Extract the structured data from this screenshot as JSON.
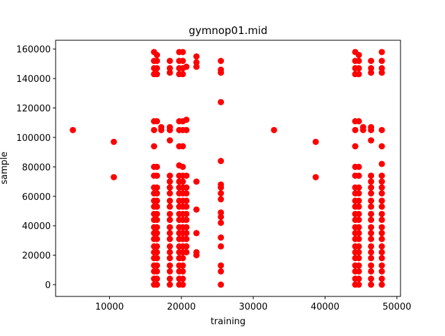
{
  "chart_data": {
    "type": "scatter",
    "title": "gymnop01.mid",
    "xlabel": "training",
    "ylabel": "sample",
    "xlim": [
      2500,
      50500
    ],
    "ylim": [
      -8000,
      166000
    ],
    "xticks": [
      10000,
      20000,
      30000,
      40000,
      50000
    ],
    "yticks": [
      0,
      20000,
      40000,
      60000,
      80000,
      100000,
      120000,
      140000,
      160000
    ],
    "grid": false,
    "legend": "none",
    "marker_color": "#ff0000",
    "series": [
      {
        "columns": [
          {
            "x": 4900,
            "y": [
              105000
            ]
          },
          {
            "x": 10600,
            "y": [
              73000,
              97000
            ]
          },
          {
            "x": 16200,
            "y": [
              0,
              4000,
              9000,
              13000,
              18000,
              22000,
              26000,
              31000,
              35000,
              39000,
              44000,
              48000,
              53000,
              57000,
              62000,
              66000,
              74000,
              80000,
              94000,
              105000,
              111000,
              143000,
              147000,
              152000,
              158000
            ]
          },
          {
            "x": 16600,
            "y": [
              0,
              4000,
              9000,
              13000,
              18000,
              22000,
              26000,
              31000,
              35000,
              39000,
              44000,
              48000,
              53000,
              57000,
              62000,
              66000,
              74000,
              80000,
              111000,
              143000,
              147000,
              152000,
              156000
            ]
          },
          {
            "x": 17200,
            "y": [
              105000,
              107000
            ]
          },
          {
            "x": 18400,
            "y": [
              0,
              4000,
              9000,
              13000,
              18000,
              22000,
              26000,
              31000,
              35000,
              39000,
              44000,
              48000,
              53000,
              57000,
              62000,
              66000,
              70000,
              74000,
              98000,
              105000,
              107000,
              144000,
              147000,
              152000
            ]
          },
          {
            "x": 19700,
            "y": [
              0,
              4000,
              9000,
              13000,
              18000,
              22000,
              26000,
              31000,
              35000,
              39000,
              44000,
              48000,
              53000,
              57000,
              62000,
              66000,
              70000,
              74000,
              81000,
              94000,
              105000,
              111000,
              143000,
              147000,
              152000,
              158000
            ]
          },
          {
            "x": 20200,
            "y": [
              0,
              4000,
              9000,
              13000,
              18000,
              22000,
              26000,
              31000,
              35000,
              39000,
              44000,
              48000,
              53000,
              57000,
              62000,
              66000,
              70000,
              74000,
              80000,
              94000,
              105000,
              111000,
              143000,
              147000,
              152000,
              158000
            ]
          },
          {
            "x": 20700,
            "y": [
              22000,
              26000,
              31000,
              35000,
              39000,
              44000,
              48000,
              53000,
              57000,
              62000,
              66000,
              74000,
              105000,
              112000,
              148000
            ]
          },
          {
            "x": 22100,
            "y": [
              20000,
              22000,
              35000,
              51000,
              70000,
              148000,
              151000,
              155000
            ]
          },
          {
            "x": 25500,
            "y": [
              0,
              9000,
              13000,
              26000,
              32000,
              42000,
              46000,
              49000,
              58000,
              62000,
              66000,
              68000,
              84000,
              124000,
              144000,
              146000,
              152000
            ]
          },
          {
            "x": 32900,
            "y": [
              105000
            ]
          },
          {
            "x": 38700,
            "y": [
              73000,
              97000
            ]
          },
          {
            "x": 44200,
            "y": [
              0,
              4000,
              9000,
              13000,
              18000,
              22000,
              26000,
              31000,
              35000,
              39000,
              44000,
              48000,
              53000,
              57000,
              62000,
              66000,
              74000,
              80000,
              94000,
              105000,
              111000,
              143000,
              147000,
              152000,
              158000
            ]
          },
          {
            "x": 44700,
            "y": [
              0,
              4000,
              9000,
              13000,
              18000,
              22000,
              26000,
              31000,
              35000,
              39000,
              44000,
              48000,
              53000,
              57000,
              62000,
              66000,
              74000,
              80000,
              111000,
              143000,
              147000,
              152000,
              156000
            ]
          },
          {
            "x": 45300,
            "y": [
              105000,
              107000
            ]
          },
          {
            "x": 46400,
            "y": [
              0,
              4000,
              9000,
              13000,
              18000,
              22000,
              26000,
              31000,
              35000,
              39000,
              44000,
              48000,
              53000,
              57000,
              62000,
              66000,
              70000,
              74000,
              98000,
              105000,
              107000,
              144000,
              147000,
              152000
            ]
          },
          {
            "x": 47900,
            "y": [
              0,
              4000,
              9000,
              13000,
              18000,
              22000,
              26000,
              31000,
              35000,
              39000,
              44000,
              48000,
              53000,
              57000,
              62000,
              66000,
              70000,
              74000,
              82000,
              94000,
              105000,
              144000,
              147000,
              152000,
              158000
            ]
          }
        ]
      }
    ]
  }
}
